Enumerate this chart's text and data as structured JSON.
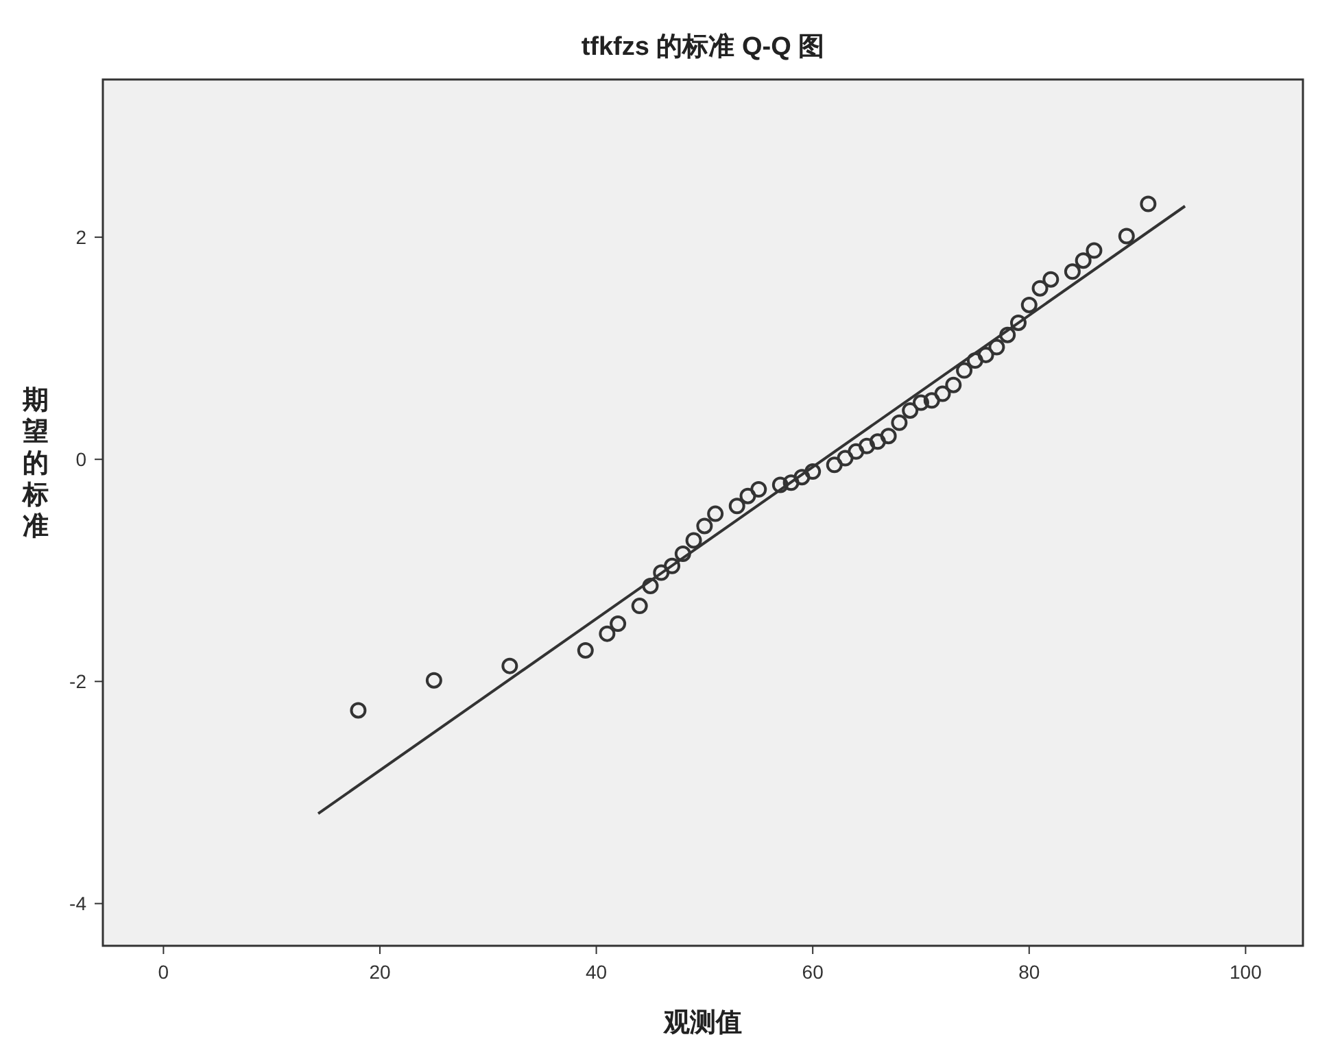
{
  "chart_data": {
    "type": "scatter",
    "title": "tfkfzs 的标准 Q-Q 图",
    "xlabel": "观测值",
    "ylabel": "期望的标准",
    "xlim": [
      -5.6,
      105.3
    ],
    "ylim": [
      -4.38,
      3.42
    ],
    "xticks": [
      0,
      20,
      40,
      60,
      80,
      100
    ],
    "yticks": [
      -4,
      -2,
      0,
      2
    ],
    "grid": false,
    "series": [
      {
        "marker": "circle",
        "color": "#333333",
        "x": [
          18,
          25,
          32,
          39,
          41,
          42,
          44,
          45,
          46,
          47,
          48,
          49,
          50,
          51,
          53,
          54,
          55,
          57,
          58,
          59,
          60,
          62,
          63,
          64,
          65,
          66,
          67,
          68,
          69,
          70,
          71,
          72,
          73,
          74,
          75,
          76,
          77,
          78,
          79,
          80,
          81,
          82,
          84,
          85,
          86,
          89,
          91
        ],
        "values": [
          -2.26,
          -1.99,
          -1.86,
          -1.72,
          -1.57,
          -1.48,
          -1.32,
          -1.14,
          -1.02,
          -0.96,
          -0.85,
          -0.73,
          -0.6,
          -0.49,
          -0.42,
          -0.33,
          -0.27,
          -0.23,
          -0.21,
          -0.16,
          -0.11,
          -0.05,
          0.01,
          0.07,
          0.12,
          0.16,
          0.21,
          0.33,
          0.44,
          0.51,
          0.53,
          0.59,
          0.67,
          0.8,
          0.89,
          0.94,
          1.01,
          1.12,
          1.23,
          1.39,
          1.54,
          1.62,
          1.69,
          1.79,
          1.88,
          2.01,
          2.3
        ]
      },
      {
        "type": "line",
        "color": "#333333",
        "x": [
          14.3,
          94.4
        ],
        "values": [
          -3.19,
          2.28
        ]
      }
    ]
  }
}
